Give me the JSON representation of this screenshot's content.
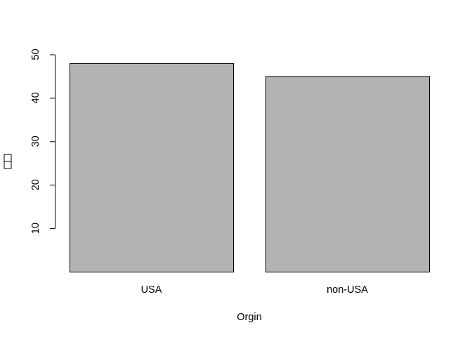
{
  "chart_data": {
    "type": "bar",
    "title": "",
    "xlabel": "Orgin",
    "ylabel": "",
    "categories": [
      "USA",
      "non-USA"
    ],
    "values": [
      48,
      45
    ],
    "ylim": [
      0,
      50
    ],
    "yticks": [
      10,
      20,
      30,
      40,
      50
    ],
    "grid": false,
    "legend": "none",
    "colors": {
      "bar_fill": "#b3b3b3",
      "bar_stroke": "#000000"
    }
  }
}
